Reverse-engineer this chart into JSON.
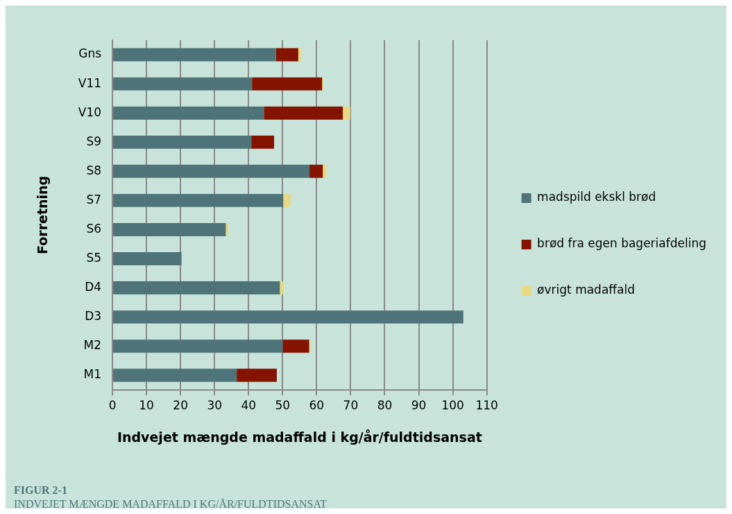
{
  "chart_data": {
    "type": "bar",
    "orientation": "horizontal",
    "stacked": true,
    "xlabel": "Indvejet mængde madaffald i kg/år/fuldtidsansat",
    "ylabel": "Forretning",
    "categories": [
      "Gns",
      "V11",
      "V10",
      "S9",
      "S8",
      "S7",
      "S6",
      "S5",
      "D4",
      "D3",
      "M2",
      "M1"
    ],
    "series": [
      {
        "name": "madspild ekskl brød",
        "color": "#4e7479",
        "values": [
          48.0,
          41.0,
          44.5,
          40.8,
          57.9,
          50.2,
          33.3,
          20.3,
          49.2,
          103.1,
          50.0,
          36.5
        ]
      },
      {
        "name": "brød fra egen bageriafdeling",
        "color": "#841400",
        "values": [
          6.6,
          20.6,
          23.2,
          6.7,
          3.9,
          0,
          0,
          0,
          0,
          0,
          7.8,
          11.8
        ]
      },
      {
        "name": "øvrigt madaffald",
        "color": "#e8d882",
        "values": [
          0.8,
          0.4,
          2.2,
          null,
          1.1,
          2.1,
          0.7,
          null,
          1.2,
          null,
          0.4,
          null
        ]
      }
    ],
    "xlim": [
      0,
      110
    ],
    "xticks": [
      0,
      10,
      20,
      30,
      40,
      50,
      60,
      70,
      80,
      90,
      100,
      110
    ],
    "grid": "x",
    "legend": "right",
    "annotations": [
      "FIGUR 2-1",
      "INDVEJET MÆNGDE MADAFFALD I KG/ÅR/FULDTIDSANSAT"
    ]
  }
}
